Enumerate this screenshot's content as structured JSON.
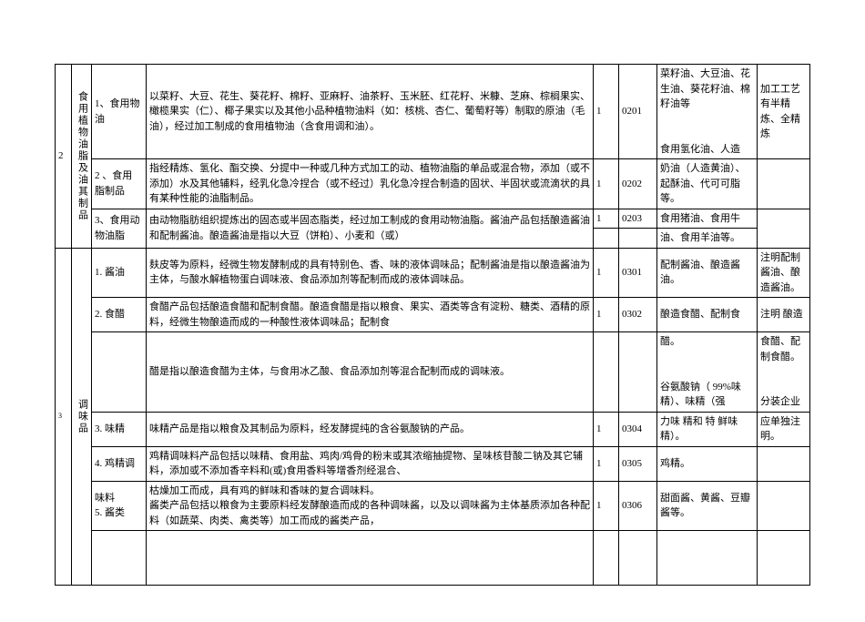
{
  "group2": {
    "index": "2",
    "category": "食用植物油脂及油其制品",
    "rows": [
      {
        "sub": "1、食用物油",
        "desc": "以菜籽、大豆、花生、葵花籽、棉籽、亚麻籽、油茶籽、玉米胚、红花籽、米糠、芝麻、棕榈果实、橄榄果实（仁）、椰子果实以及其他小品种植物油料（如：核桃、杏仁、葡萄籽等）制取的原油（毛油），经过加工制成的食用植物油（含食用调和油）。",
        "n1": "1",
        "code": "0201",
        "prod": "菜籽油、大豆油、花生油、葵花籽油、棉籽油等\n\n食用氢化油、人造",
        "note": "加工工艺有半精炼、全精炼"
      },
      {
        "sub": "2 、食用\n脂制品",
        "desc": "指经精炼、氢化、酯交换、分提中一种或几种方式加工的动、植物油脂的单品或混合物，添加（或不添加）水及其他辅料，经乳化急冷捏合（或不经过）乳化急冷捏合制造的固状、半固状或流滴状的具有某种性能的油脂制品。",
        "n1": "1",
        "code": "0202",
        "prod": "奶油（人造黄油）、起酥油、代可可脂等。",
        "note": ""
      },
      {
        "sub": "",
        "desc": "",
        "n1": "1",
        "code": "0203",
        "prod": "食用猪油、食用牛",
        "note": ""
      },
      {
        "sub": "3、食用动物油脂",
        "desc": "由动物脂肪组织提炼出的固态或半固态脂类，经过加工制成的食用动物油脂。酱油产品包括酿造酱油和配制酱油。酿造酱油是指以大豆（饼粕）、小麦和（或）",
        "n1": "",
        "code": "",
        "prod": "油、食用羊油等。",
        "note": ""
      }
    ]
  },
  "group3": {
    "index": "3",
    "category": "调味品",
    "rows": [
      {
        "sub": "1. 酱油",
        "desc": "麸皮等为原料，经微生物发酵制成的具有特别色、香、味的液体调味品；配制酱油是指以酿造酱油为主体，与酸水解植物蛋白调味液、食品添加剂等配制而成的液体调味品。",
        "n1": "1",
        "code": "0301",
        "prod": "配制酱油、酿造酱油。",
        "note": "注明配制酱油、酿造酱油。"
      },
      {
        "sub": "2. 食醋",
        "desc": "食醋产品包括酿造食醋和配制食醋。酿造食醋是指以粮食、果实、酒类等含有淀粉、糖类、酒精的原料，经微生物酿造而成的一种酸性液体调味品；配制食",
        "n1": "1",
        "code": "0302",
        "prod": "酿造食醋、配制食",
        "note": "注明 酿造"
      },
      {
        "sub": "",
        "desc": "醋是指以酿造食醋为主体，与食用冰乙酸、食品添加剂等混合配制而成的调味液。",
        "n1": "",
        "code": "",
        "prod": "醋。\n\n谷氨酸钠（  99%味精）、味精（强",
        "note": "食醋、配制食醋。\n\n分装企业"
      },
      {
        "sub": "3. 味精",
        "desc": "味精产品是指以粮食及其制品为原料，经发酵提纯的含谷氨酸钠的产品。",
        "n1": "1",
        "code": "0304",
        "prod": "力味 精和 特 鲜味精）。",
        "note": "应单独注明。"
      },
      {
        "sub": "4. 鸡精调",
        "desc": "鸡精调味料产品包括以味精、食用盐、鸡肉/鸡骨的粉末或其浓缩抽提物、呈味核苷酸二钠及其它辅料，添加或不添加香辛料和(或)食用香料等增香剂经混合、",
        "n1": "1",
        "code": "0305",
        "prod": "鸡精。",
        "note": ""
      },
      {
        "sub": "味料\n5. 酱类",
        "desc": "枯燥加工而成，具有鸡的鲜味和香味的复合调味料。\n酱类产品包括以粮食为主要原料经发酵酿造而成的各种调味酱，以及以调味酱为主体基质添加各种配料（如蔬菜、肉类、禽类等）加工而成的酱类产品，",
        "n1": "1",
        "code": "0306",
        "prod": "甜面酱、黄酱、豆瓣酱等。",
        "note": ""
      },
      {
        "sub": "",
        "desc": "",
        "n1": "",
        "code": "",
        "prod": "",
        "note": ""
      }
    ]
  }
}
